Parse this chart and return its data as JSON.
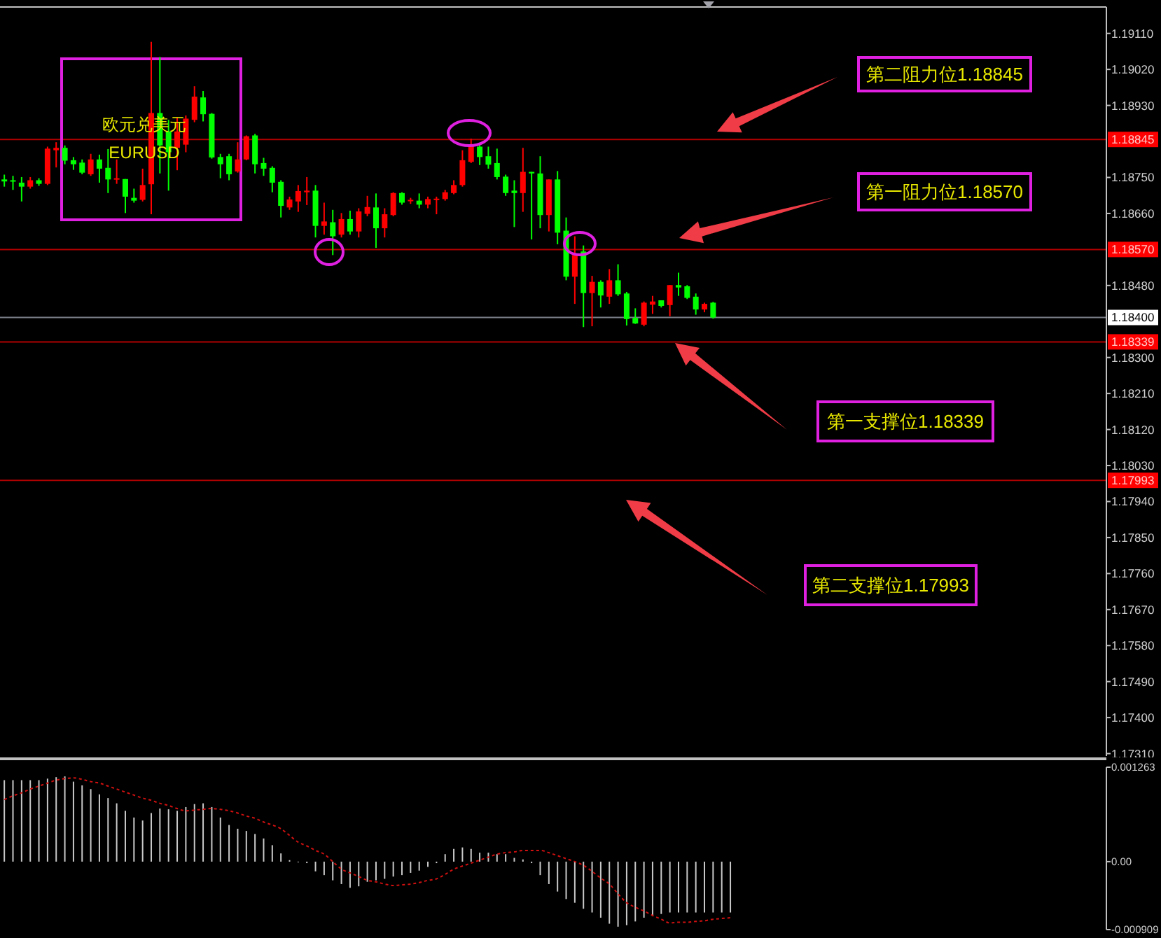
{
  "chart_data": [
    {
      "type": "candlestick",
      "title": "欧元兑美元",
      "subtitle": "EURUSD",
      "tick_labels": "y",
      "categories": [
        null,
        null,
        null,
        null,
        null,
        null,
        null,
        null,
        null,
        null,
        null,
        null,
        null,
        null,
        null,
        null,
        null,
        null,
        null,
        null,
        null,
        null,
        null,
        null,
        null,
        null,
        null,
        null,
        null,
        null,
        null,
        null,
        null,
        null,
        null,
        null,
        null,
        null,
        null,
        null,
        null,
        null,
        null,
        null,
        null,
        null,
        null,
        null,
        null,
        null,
        null,
        null,
        null,
        null,
        null,
        null,
        null,
        null,
        null,
        null,
        null,
        null,
        null,
        null,
        null,
        null,
        null,
        null,
        null,
        null,
        null,
        null,
        null,
        null,
        null,
        null,
        null,
        null,
        null,
        null,
        null,
        null,
        null,
        null,
        null,
        null,
        null,
        null,
        null,
        null,
        null,
        null,
        null,
        null,
        null,
        null,
        null,
        null,
        null,
        null,
        null,
        null,
        null,
        null,
        null,
        null,
        null,
        null,
        null,
        null,
        null,
        null,
        null,
        null,
        null,
        null,
        null,
        null,
        null,
        null,
        null,
        null,
        null,
        null,
        null,
        null,
        null,
        null
      ],
      "ohlc": [
        [
          1.18745,
          1.18757,
          1.18727,
          1.1874
        ],
        [
          1.18743,
          1.18754,
          1.18719,
          1.1874
        ],
        [
          1.18737,
          1.18751,
          1.1869,
          1.18727
        ],
        [
          1.18727,
          1.18751,
          1.18722,
          1.18743
        ],
        [
          1.18743,
          1.18748,
          1.18729,
          1.18734
        ],
        [
          1.18734,
          1.18827,
          1.18731,
          1.18822
        ],
        [
          1.18818,
          1.18838,
          1.18775,
          1.18824
        ],
        [
          1.18824,
          1.1883,
          1.18783,
          1.18792
        ],
        [
          1.18793,
          1.18801,
          1.18769,
          1.18783
        ],
        [
          1.18787,
          1.18795,
          1.18758,
          1.18762
        ],
        [
          1.18758,
          1.18809,
          1.18754,
          1.18795
        ],
        [
          1.18795,
          1.18807,
          1.18737,
          1.18772
        ],
        [
          1.18774,
          1.18821,
          1.18711,
          1.18745
        ],
        [
          1.18745,
          1.18795,
          1.18734,
          1.18748
        ],
        [
          1.18746,
          1.18746,
          1.18661,
          1.18702
        ],
        [
          1.18699,
          1.18722,
          1.18687,
          1.18692
        ],
        [
          1.18694,
          1.18772,
          1.1869,
          1.18731
        ],
        [
          1.18733,
          1.19089,
          1.18658,
          1.18911
        ],
        [
          1.18911,
          1.19051,
          1.1876,
          1.1883
        ],
        [
          1.18865,
          1.18894,
          1.18717,
          1.18813
        ],
        [
          1.18824,
          1.189,
          1.18768,
          1.18865
        ],
        [
          1.18832,
          1.18905,
          1.18813,
          1.18897
        ],
        [
          1.18894,
          1.18978,
          1.18888,
          1.18952
        ],
        [
          1.1895,
          1.18966,
          1.1889,
          1.18908
        ],
        [
          1.18909,
          1.18911,
          1.18797,
          1.188
        ],
        [
          1.18801,
          1.18809,
          1.18748,
          1.18783
        ],
        [
          1.18803,
          1.18809,
          1.18743,
          1.18758
        ],
        [
          1.18765,
          1.18838,
          1.18762,
          1.18795
        ],
        [
          1.18795,
          1.18855,
          1.18793,
          1.18853
        ],
        [
          1.18855,
          1.18859,
          1.1876,
          1.18783
        ],
        [
          1.18786,
          1.18799,
          1.18754,
          1.18772
        ],
        [
          1.18774,
          1.18778,
          1.18713,
          1.18737
        ],
        [
          1.18739,
          1.18743,
          1.1865,
          1.18679
        ],
        [
          1.18675,
          1.18702,
          1.18669,
          1.18695
        ],
        [
          1.1869,
          1.18731,
          1.18664,
          1.18716
        ],
        [
          1.18713,
          1.18751,
          1.18681,
          1.18717
        ],
        [
          1.18717,
          1.18731,
          1.186,
          1.18629
        ],
        [
          1.18629,
          1.18687,
          1.18607,
          1.1864
        ],
        [
          1.18638,
          1.18669,
          1.18556,
          1.18603
        ],
        [
          1.18607,
          1.18661,
          1.186,
          1.18646
        ],
        [
          1.18646,
          1.18667,
          1.18607,
          1.18615
        ],
        [
          1.18615,
          1.18673,
          1.186,
          1.18665
        ],
        [
          1.18659,
          1.18704,
          1.18653,
          1.18676
        ],
        [
          1.18675,
          1.1871,
          1.18574,
          1.18623
        ],
        [
          1.18623,
          1.18673,
          1.186,
          1.18658
        ],
        [
          1.18656,
          1.18713,
          1.18653,
          1.18711
        ],
        [
          1.18711,
          1.18713,
          1.18682,
          1.18687
        ],
        [
          1.18691,
          1.18699,
          1.18684,
          1.18694
        ],
        [
          1.18692,
          1.1871,
          1.18673,
          1.18682
        ],
        [
          1.18682,
          1.18702,
          1.18673,
          1.18696
        ],
        [
          1.18695,
          1.18702,
          1.18658,
          1.18697
        ],
        [
          1.18696,
          1.18719,
          1.18692,
          1.18713
        ],
        [
          1.18711,
          1.18743,
          1.18708,
          1.18731
        ],
        [
          1.18731,
          1.18818,
          1.18727,
          1.18793
        ],
        [
          1.18789,
          1.18847,
          1.18786,
          1.1883
        ],
        [
          1.18827,
          1.18832,
          1.18781,
          1.18801
        ],
        [
          1.18803,
          1.18827,
          1.18772,
          1.18782
        ],
        [
          1.18786,
          1.18822,
          1.18745,
          1.18751
        ],
        [
          1.18752,
          1.18757,
          1.18704,
          1.18711
        ],
        [
          1.18717,
          1.18743,
          1.18626,
          1.18711
        ],
        [
          1.18711,
          1.18824,
          1.18664,
          1.18764
        ],
        [
          1.18764,
          1.18764,
          1.18595,
          1.1876
        ],
        [
          1.1876,
          1.18803,
          1.18623,
          1.18656
        ],
        [
          1.18656,
          1.18745,
          1.18615,
          1.18745
        ],
        [
          1.18745,
          1.18766,
          1.18583,
          1.18612
        ],
        [
          1.18617,
          1.1865,
          1.18493,
          1.18502
        ],
        [
          1.18502,
          1.18603,
          1.18434,
          1.18556
        ],
        [
          1.18565,
          1.1858,
          1.18376,
          1.18461
        ],
        [
          1.18461,
          1.18504,
          1.18378,
          1.18489
        ],
        [
          1.18489,
          1.18493,
          1.18425,
          1.18455
        ],
        [
          1.18452,
          1.18521,
          1.18434,
          1.18493
        ],
        [
          1.18493,
          1.18533,
          1.18454,
          1.18458
        ],
        [
          1.1846,
          1.18464,
          1.1838,
          1.18396
        ],
        [
          1.18399,
          1.18423,
          1.18384,
          1.18385
        ],
        [
          1.18382,
          1.1844,
          1.18378,
          1.18437
        ],
        [
          1.18432,
          1.18454,
          1.18409,
          1.1844
        ],
        [
          1.18443,
          1.18443,
          1.18425,
          1.18429
        ],
        [
          1.18431,
          1.18481,
          1.18403,
          1.18481
        ],
        [
          1.18481,
          1.18512,
          1.18454,
          1.18475
        ],
        [
          1.18478,
          1.18481,
          1.18446,
          1.18449
        ],
        [
          1.18452,
          1.1846,
          1.18407,
          1.1842
        ],
        [
          1.1842,
          1.18437,
          1.18413,
          1.18434
        ],
        [
          1.18437,
          1.18439,
          1.18397,
          1.184
        ],
        null,
        null,
        null,
        null,
        null,
        null,
        null,
        null,
        null,
        null,
        null,
        null,
        null,
        null,
        null,
        null,
        null,
        null,
        null,
        null,
        null,
        null,
        null,
        null,
        null,
        null,
        null,
        null,
        null,
        null,
        null,
        null,
        null,
        null,
        null,
        null,
        null,
        null,
        null,
        null,
        null,
        null,
        null,
        null,
        null
      ],
      "ylim": [
        1.17304,
        1.19176
      ],
      "yticks": [
        {
          "value": 1.1911,
          "label": "1.19110"
        },
        {
          "value": 1.1902,
          "label": "1.19020"
        },
        {
          "value": 1.1893,
          "label": "1.18930"
        },
        {
          "value": 1.1875,
          "label": "1.18750"
        },
        {
          "value": 1.1866,
          "label": "1.18660"
        },
        {
          "value": 1.1848,
          "label": "1.18480"
        },
        {
          "value": 1.183,
          "label": "1.18300"
        },
        {
          "value": 1.1821,
          "label": "1.18210"
        },
        {
          "value": 1.1812,
          "label": "1.18120"
        },
        {
          "value": 1.1803,
          "label": "1.18030"
        },
        {
          "value": 1.1794,
          "label": "1.17940"
        },
        {
          "value": 1.1785,
          "label": "1.17850"
        },
        {
          "value": 1.1776,
          "label": "1.17760"
        },
        {
          "value": 1.1767,
          "label": "1.17670"
        },
        {
          "value": 1.1758,
          "label": "1.17580"
        },
        {
          "value": 1.1749,
          "label": "1.17490"
        },
        {
          "value": 1.174,
          "label": "1.17400"
        },
        {
          "value": 1.1731,
          "label": "1.17310"
        }
      ],
      "ref_lines": [
        {
          "axis": "y",
          "value": 1.18845,
          "label": "1.18845",
          "color": "#b00000"
        },
        {
          "axis": "y",
          "value": 1.1857,
          "label": "1.18570",
          "color": "#b00000"
        },
        {
          "axis": "y",
          "value": 1.184,
          "label": "1.18400",
          "color": "#7a8088"
        },
        {
          "axis": "y",
          "value": 1.18339,
          "label": "1.18339",
          "color": "#b00000"
        },
        {
          "axis": "y",
          "value": 1.17993,
          "label": "1.17993",
          "color": "#b00000"
        }
      ],
      "annotations": [
        "第二阻力位1.18845",
        "第一阻力位1.18570",
        "第一支撑位1.18339",
        "第二支撑位1.17993"
      ]
    },
    {
      "type": "bar",
      "tick_labels": "y",
      "categories": [
        null,
        null,
        null,
        null,
        null,
        null,
        null,
        null,
        null,
        null,
        null,
        null,
        null,
        null,
        null,
        null,
        null,
        null,
        null,
        null,
        null,
        null,
        null,
        null,
        null,
        null,
        null,
        null,
        null,
        null,
        null,
        null,
        null,
        null,
        null,
        null,
        null,
        null,
        null,
        null,
        null,
        null,
        null,
        null,
        null,
        null,
        null,
        null,
        null,
        null,
        null,
        null,
        null,
        null,
        null,
        null,
        null,
        null,
        null,
        null,
        null,
        null,
        null,
        null,
        null,
        null,
        null,
        null,
        null,
        null,
        null,
        null,
        null,
        null,
        null,
        null,
        null,
        null,
        null,
        null,
        null,
        null,
        null,
        null,
        null,
        null,
        null,
        null,
        null,
        null,
        null,
        null,
        null,
        null,
        null,
        null,
        null,
        null,
        null,
        null,
        null,
        null,
        null,
        null,
        null,
        null,
        null,
        null,
        null,
        null,
        null,
        null,
        null,
        null,
        null,
        null,
        null,
        null,
        null,
        null,
        null,
        null,
        null,
        null,
        null,
        null,
        null,
        null
      ],
      "ylim": [
        -0.000909,
        0.001263
      ],
      "yticks": [
        0.001263,
        {
          "value": 0,
          "label": "0.00"
        },
        -0.000909
      ],
      "series": [
        {
          "type": "bar",
          "color": "#c8c8c8",
          "values": [
            0.00109,
            0.00109,
            0.00109,
            0.00109,
            0.00109,
            0.00111,
            0.00113,
            0.00114,
            0.00107,
            0.00102,
            0.00097,
            0.0009,
            0.00085,
            0.00078,
            0.00068,
            0.00059,
            0.00055,
            0.00065,
            0.00071,
            0.0007,
            0.00068,
            0.00073,
            0.00077,
            0.00078,
            0.00073,
            0.00059,
            0.00049,
            0.00044,
            0.00041,
            0.00037,
            0.00031,
            0.00022,
            0.00011,
            2e-05,
            0,
            -2e-05,
            -0.00013,
            -0.00018,
            -0.00025,
            -0.0003,
            -0.00035,
            -0.00033,
            -0.00027,
            -0.00025,
            -0.00023,
            -0.0002,
            -0.00018,
            -0.00015,
            -0.00012,
            -7e-05,
            -2e-05,
            0.0001,
            0.00017,
            0.00019,
            0.00017,
            0.00012,
            0.00012,
            0.0001,
            0.0001,
            5e-05,
            3e-05,
            -2e-05,
            -0.00018,
            -0.0003,
            -0.0004,
            -0.0005,
            -0.00055,
            -0.00063,
            -0.00068,
            -0.00075,
            -0.00083,
            -0.00087,
            -0.00085,
            -0.0008,
            -0.00075,
            -0.00073,
            -0.0007,
            -0.00068,
            -0.00068,
            -0.00068,
            -0.00068,
            -0.00068,
            -0.00068,
            -0.00068,
            -0.00068,
            null,
            null,
            null,
            null,
            null,
            null,
            null,
            null,
            null,
            null,
            null,
            null,
            null,
            null,
            null,
            null,
            null,
            null,
            null,
            null,
            null,
            null,
            null,
            null,
            null,
            null,
            null,
            null,
            null,
            null,
            null,
            null,
            null,
            null,
            null,
            null,
            null,
            null,
            null,
            null,
            null,
            null,
            null
          ]
        },
        {
          "type": "line",
          "color": "#d01010",
          "line_style": "dotted",
          "values": [
            0.00083,
            0.00088,
            0.00092,
            0.00097,
            0.00101,
            0.00105,
            0.00109,
            0.00111,
            0.00112,
            0.0011,
            0.00107,
            0.00105,
            0.00101,
            0.00097,
            0.00093,
            0.00089,
            0.00085,
            0.00082,
            0.00078,
            0.00075,
            0.00071,
            0.00068,
            0.00069,
            0.0007,
            0.00071,
            0.0007,
            0.00068,
            0.00065,
            0.00061,
            0.00058,
            0.00053,
            0.00049,
            0.00044,
            0.00035,
            0.00026,
            0.00021,
            0.00015,
            0.0001,
            0,
            -0.0001,
            -0.00015,
            -0.0002,
            -0.00025,
            -0.00027,
            -0.0003,
            -0.00032,
            -0.00031,
            -0.0003,
            -0.00028,
            -0.00025,
            -0.00023,
            -0.00017,
            -0.0001,
            -6e-05,
            -2e-05,
            2e-05,
            6e-05,
            0.0001,
            0.00012,
            0.00013,
            0.00015,
            0.00015,
            0.00015,
            0.00012,
            8e-05,
            4e-05,
            0,
            -5e-05,
            -0.00013,
            -0.00022,
            -0.0003,
            -0.00043,
            -0.00055,
            -0.00061,
            -0.00066,
            -0.00072,
            -0.00077,
            -0.00082,
            -0.00081,
            -0.00081,
            -0.0008,
            -0.00079,
            -0.00077,
            -0.00076,
            -0.00075,
            null,
            null,
            null,
            null,
            null,
            null,
            null,
            null,
            null,
            null,
            null,
            null,
            null,
            null,
            null,
            null,
            null,
            null,
            null,
            null,
            null,
            null,
            null,
            null,
            null,
            null,
            null,
            null,
            null,
            null,
            null,
            null,
            null,
            null,
            null,
            null,
            null,
            null,
            null,
            null,
            null,
            null,
            null
          ]
        }
      ]
    }
  ]
}
